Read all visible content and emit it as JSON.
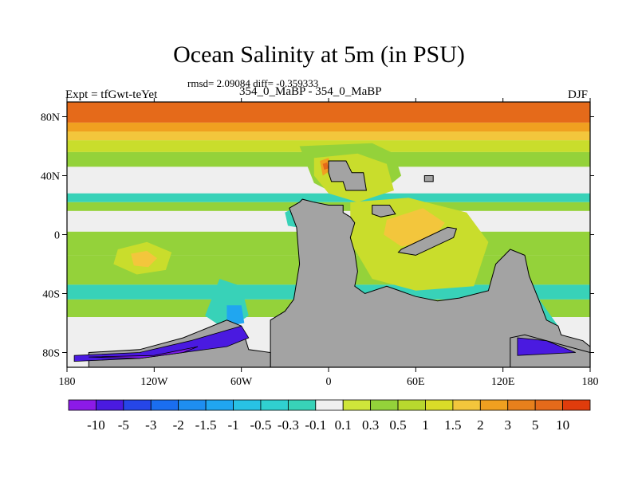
{
  "title": "Ocean Salinity at 5m (in PSU)",
  "stats": "rmsd= 2.09084 diff= -0.359333",
  "left_label": "Expt = tfGwt-teYet",
  "subtitle": "354_0_MaBP - 354_0_MaBP",
  "season": "DJF",
  "colors": {
    "land": "#a3a3a3",
    "frame": "#000000"
  },
  "map_data": {
    "lon_range": [
      -180,
      180
    ],
    "lat_range": [
      -90,
      90
    ],
    "lon_ticks": [
      {
        "value": -180,
        "label": "180"
      },
      {
        "value": -120,
        "label": "120W"
      },
      {
        "value": -60,
        "label": "60W"
      },
      {
        "value": 0,
        "label": "0"
      },
      {
        "value": 60,
        "label": "60E"
      },
      {
        "value": 120,
        "label": "120E"
      },
      {
        "value": 180,
        "label": "180"
      }
    ],
    "lat_ticks": [
      {
        "value": 80,
        "label": "80N"
      },
      {
        "value": 40,
        "label": "40N"
      },
      {
        "value": 0,
        "label": "0"
      },
      {
        "value": -40,
        "label": "40S"
      },
      {
        "value": -80,
        "label": "80S"
      }
    ],
    "zonal_bands": [
      {
        "lat_from": 90,
        "lat_to": 76,
        "color": "#e56a1a"
      },
      {
        "lat_from": 76,
        "lat_to": 70,
        "color": "#f0a020"
      },
      {
        "lat_from": 70,
        "lat_to": 64,
        "color": "#f3c63c"
      },
      {
        "lat_from": 64,
        "lat_to": 56,
        "color": "#c9dd2c"
      },
      {
        "lat_from": 56,
        "lat_to": 46,
        "color": "#94d23a"
      },
      {
        "lat_from": 46,
        "lat_to": 28,
        "color": "#efefef"
      },
      {
        "lat_from": 28,
        "lat_to": 22,
        "color": "#38d2b8"
      },
      {
        "lat_from": 22,
        "lat_to": 16,
        "color": "#94d23a"
      },
      {
        "lat_from": 16,
        "lat_to": 2,
        "color": "#efefef"
      },
      {
        "lat_from": 2,
        "lat_to": -14,
        "color": "#94d23a"
      },
      {
        "lat_from": -14,
        "lat_to": -34,
        "color": "#94d23a"
      },
      {
        "lat_from": -34,
        "lat_to": -44,
        "color": "#38d2b8"
      },
      {
        "lat_from": -44,
        "lat_to": -56,
        "color": "#94d23a"
      },
      {
        "lat_from": -56,
        "lat_to": -70,
        "color": "#efefef"
      },
      {
        "lat_from": -70,
        "lat_to": -90,
        "color": "#efefef"
      }
    ],
    "anomaly_patches": [
      {
        "name": "north-atlantic-green",
        "color": "#94d23a",
        "points": [
          [
            -20,
            60
          ],
          [
            30,
            62
          ],
          [
            45,
            55
          ],
          [
            50,
            40
          ],
          [
            35,
            28
          ],
          [
            10,
            25
          ],
          [
            -10,
            35
          ]
        ]
      },
      {
        "name": "mid-latitude-yellow",
        "color": "#c9dd2c",
        "points": [
          [
            -10,
            52
          ],
          [
            20,
            55
          ],
          [
            40,
            48
          ],
          [
            45,
            30
          ],
          [
            20,
            22
          ],
          [
            0,
            28
          ],
          [
            -10,
            40
          ]
        ]
      },
      {
        "name": "north-anomaly-orange",
        "color": "#f0a020",
        "points": [
          [
            -6,
            50
          ],
          [
            0,
            52
          ],
          [
            2,
            44
          ],
          [
            -4,
            40
          ]
        ]
      },
      {
        "name": "north-anomaly-red",
        "color": "#e56a1a",
        "points": [
          [
            -4,
            48
          ],
          [
            -1,
            49
          ],
          [
            0,
            45
          ],
          [
            -3,
            44
          ]
        ]
      },
      {
        "name": "tethys-yellow",
        "color": "#c9dd2c",
        "points": [
          [
            15,
            22
          ],
          [
            55,
            25
          ],
          [
            95,
            15
          ],
          [
            110,
            -5
          ],
          [
            100,
            -35
          ],
          [
            60,
            -38
          ],
          [
            30,
            -30
          ],
          [
            15,
            -5
          ]
        ]
      },
      {
        "name": "tethys-orange",
        "color": "#f3c63c",
        "points": [
          [
            40,
            10
          ],
          [
            65,
            18
          ],
          [
            80,
            8
          ],
          [
            70,
            -5
          ],
          [
            50,
            -8
          ],
          [
            38,
            0
          ]
        ]
      },
      {
        "name": "south-pacific-gyre",
        "color": "#c9dd2c",
        "points": [
          [
            -145,
            -10
          ],
          [
            -125,
            -5
          ],
          [
            -108,
            -12
          ],
          [
            -112,
            -24
          ],
          [
            -132,
            -27
          ],
          [
            -148,
            -20
          ]
        ]
      },
      {
        "name": "south-pacific-core",
        "color": "#f3c63c",
        "points": [
          [
            -136,
            -13
          ],
          [
            -125,
            -11
          ],
          [
            -118,
            -16
          ],
          [
            -124,
            -22
          ],
          [
            -134,
            -21
          ]
        ]
      },
      {
        "name": "sw-coast-cyan",
        "color": "#38d2b8",
        "points": [
          [
            -75,
            -30
          ],
          [
            -60,
            -35
          ],
          [
            -55,
            -55
          ],
          [
            -70,
            -65
          ],
          [
            -85,
            -55
          ]
        ]
      },
      {
        "name": "sw-coast-blue",
        "color": "#20a6f0",
        "points": [
          [
            -70,
            -48
          ],
          [
            -60,
            -48
          ],
          [
            -58,
            -60
          ],
          [
            -70,
            -62
          ]
        ]
      },
      {
        "name": "equator-blue",
        "color": "#1a6ef0",
        "points": [
          [
            -22,
            18
          ],
          [
            -14,
            20
          ],
          [
            -12,
            8
          ],
          [
            -20,
            6
          ]
        ]
      },
      {
        "name": "equator-cyan",
        "color": "#38d2b8",
        "points": [
          [
            -30,
            15
          ],
          [
            -12,
            24
          ],
          [
            -8,
            14
          ],
          [
            -16,
            4
          ],
          [
            -28,
            6
          ]
        ]
      },
      {
        "name": "se-pacific-blue",
        "color": "#20a6f0",
        "points": [
          [
            125,
            -50
          ],
          [
            140,
            -48
          ],
          [
            150,
            -60
          ],
          [
            135,
            -66
          ]
        ]
      },
      {
        "name": "se-pacific-cyan",
        "color": "#38d2b8",
        "points": [
          [
            118,
            -44
          ],
          [
            145,
            -44
          ],
          [
            158,
            -62
          ],
          [
            135,
            -70
          ],
          [
            118,
            -58
          ]
        ]
      }
    ],
    "land": [
      {
        "name": "main-continent",
        "points": [
          [
            -40,
            -90
          ],
          [
            -40,
            -58
          ],
          [
            -30,
            -52
          ],
          [
            -24,
            -44
          ],
          [
            -20,
            -20
          ],
          [
            -22,
            5
          ],
          [
            -27,
            18
          ],
          [
            -20,
            22
          ],
          [
            -18,
            24
          ],
          [
            -10,
            22
          ],
          [
            0,
            20
          ],
          [
            10,
            20
          ],
          [
            10,
            15
          ],
          [
            15,
            12
          ],
          [
            18,
            8
          ],
          [
            15,
            -2
          ],
          [
            18,
            -12
          ],
          [
            20,
            -25
          ],
          [
            18,
            -35
          ],
          [
            25,
            -40
          ],
          [
            40,
            -35
          ],
          [
            60,
            -42
          ],
          [
            75,
            -45
          ],
          [
            90,
            -43
          ],
          [
            110,
            -38
          ],
          [
            115,
            -20
          ],
          [
            125,
            -10
          ],
          [
            135,
            -14
          ],
          [
            138,
            -28
          ],
          [
            145,
            -45
          ],
          [
            150,
            -58
          ],
          [
            158,
            -62
          ],
          [
            160,
            -68
          ],
          [
            175,
            -72
          ],
          [
            180,
            -76
          ],
          [
            180,
            -90
          ]
        ]
      },
      {
        "name": "northern-island",
        "points": [
          [
            0,
            50
          ],
          [
            12,
            50
          ],
          [
            16,
            42
          ],
          [
            24,
            42
          ],
          [
            26,
            30
          ],
          [
            12,
            30
          ],
          [
            10,
            36
          ],
          [
            2,
            36
          ],
          [
            0,
            42
          ]
        ]
      },
      {
        "name": "eastern-island",
        "points": [
          [
            30,
            20
          ],
          [
            42,
            20
          ],
          [
            46,
            14
          ],
          [
            36,
            12
          ],
          [
            30,
            14
          ]
        ]
      },
      {
        "name": "diagonal-island",
        "points": [
          [
            50,
            -10
          ],
          [
            82,
            5
          ],
          [
            88,
            4
          ],
          [
            86,
            -2
          ],
          [
            60,
            -14
          ],
          [
            48,
            -12
          ]
        ]
      },
      {
        "name": "small-islet",
        "points": [
          [
            66,
            40
          ],
          [
            72,
            40
          ],
          [
            72,
            36
          ],
          [
            66,
            36
          ]
        ]
      },
      {
        "name": "sw-lobe",
        "points": [
          [
            -165,
            -90
          ],
          [
            -165,
            -80
          ],
          [
            -130,
            -78
          ],
          [
            -100,
            -70
          ],
          [
            -70,
            -58
          ],
          [
            -60,
            -62
          ],
          [
            -55,
            -78
          ],
          [
            -40,
            -80
          ],
          [
            -40,
            -90
          ]
        ]
      },
      {
        "name": "se-lobe",
        "points": [
          [
            125,
            -90
          ],
          [
            125,
            -70
          ],
          [
            135,
            -68
          ],
          [
            150,
            -72
          ],
          [
            165,
            -76
          ],
          [
            180,
            -80
          ],
          [
            180,
            -90
          ]
        ]
      }
    ],
    "polar_anomalies": [
      {
        "name": "antarctic-west-purple",
        "color": "#4a1ae0",
        "points": [
          [
            -175,
            -82
          ],
          [
            -130,
            -80
          ],
          [
            -95,
            -72
          ],
          [
            -60,
            -62
          ],
          [
            -55,
            -70
          ],
          [
            -70,
            -76
          ],
          [
            -100,
            -80
          ],
          [
            -130,
            -84
          ],
          [
            -175,
            -86
          ]
        ]
      },
      {
        "name": "antarctic-west-deep",
        "color": "#7a1ae8",
        "points": [
          [
            -165,
            -83
          ],
          [
            -120,
            -82
          ],
          [
            -90,
            -76
          ],
          [
            -100,
            -80
          ],
          [
            -130,
            -84
          ]
        ]
      },
      {
        "name": "antarctic-east-purple",
        "color": "#4a1ae0",
        "points": [
          [
            130,
            -70
          ],
          [
            150,
            -72
          ],
          [
            170,
            -80
          ],
          [
            130,
            -82
          ]
        ]
      }
    ]
  },
  "colorbar": {
    "colors": [
      "#8c1ae8",
      "#4a1ae0",
      "#2646e8",
      "#1a6ef0",
      "#1e8ef0",
      "#20a6f0",
      "#28c2e4",
      "#30d0d0",
      "#38d2b8",
      "#efefef",
      "#cfe63a",
      "#94d23a",
      "#b8d82e",
      "#d9dc28",
      "#f3c63c",
      "#f0a020",
      "#e8801c",
      "#e56a1a",
      "#e03c0c"
    ],
    "labels": [
      "-10",
      "-5",
      "-3",
      "-2",
      "-1.5",
      "-1",
      "-0.5",
      "-0.3",
      "-0.1",
      "0.1",
      "0.3",
      "0.5",
      "1",
      "1.5",
      "2",
      "3",
      "5",
      "10"
    ]
  }
}
